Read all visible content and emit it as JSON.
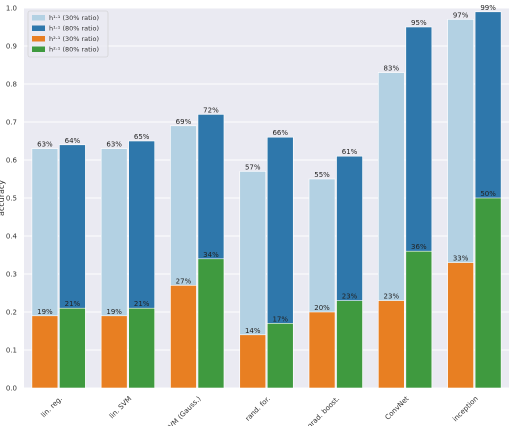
{
  "chart_data": {
    "type": "bar",
    "ylabel": "accuracy",
    "ylim": [
      0,
      1.0
    ],
    "yticks": [
      "0.0",
      "0.1",
      "0.2",
      "0.3",
      "0.4",
      "0.5",
      "0.6",
      "0.7",
      "0.8",
      "0.9",
      "1.0"
    ],
    "grid": true,
    "legend_position": "top-left",
    "categories": [
      "lin. reg.",
      "lin. SVM",
      "SVM (Gauss.)",
      "rand. for.",
      "grad. boost.",
      "ConvNet",
      "inception"
    ],
    "series": [
      {
        "name": "h¹·¹ (30% ratio)",
        "values": [
          0.63,
          0.63,
          0.69,
          0.57,
          0.55,
          0.83,
          0.97
        ],
        "labels": [
          "63%",
          "63%",
          "69%",
          "57%",
          "55%",
          "83%",
          "97%"
        ]
      },
      {
        "name": "h¹·¹ (80% ratio)",
        "values": [
          0.64,
          0.65,
          0.72,
          0.66,
          0.61,
          0.95,
          0.99
        ],
        "labels": [
          "64%",
          "65%",
          "72%",
          "66%",
          "61%",
          "95%",
          "99%"
        ]
      },
      {
        "name": "h²·¹ (30% ratio)",
        "values": [
          0.19,
          0.19,
          0.27,
          0.14,
          0.2,
          0.23,
          0.33
        ],
        "labels": [
          "19%",
          "19%",
          "27%",
          "14%",
          "20%",
          "23%",
          "33%"
        ]
      },
      {
        "name": "h²·¹ (80% ratio)",
        "values": [
          0.21,
          0.21,
          0.34,
          0.17,
          0.23,
          0.36,
          0.5
        ],
        "labels": [
          "21%",
          "21%",
          "34%",
          "17%",
          "23%",
          "36%",
          "50%"
        ]
      }
    ],
    "colors": [
      "#b3d1e3",
      "#2e77ab",
      "#e87f22",
      "#3f9a3f"
    ]
  }
}
